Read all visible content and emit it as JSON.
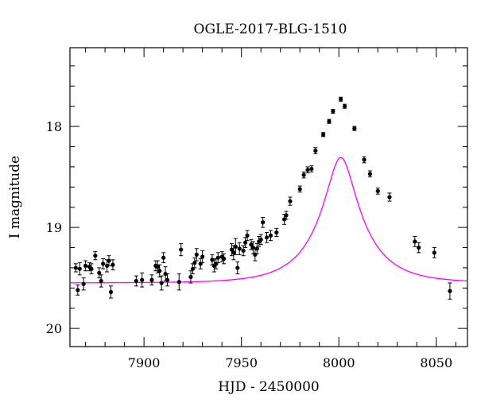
{
  "chart_data": {
    "type": "scatter",
    "title": "OGLE-2017-BLG-1510",
    "xlabel": "HJD - 2450000",
    "ylabel": "I magnitude",
    "xlim": [
      7862,
      8066
    ],
    "ylim": [
      20.18,
      17.22
    ],
    "y_inverted": true,
    "x_ticks": [
      7900,
      7950,
      8000,
      8050
    ],
    "x_tick_labels": [
      "7900",
      "7950",
      "8000",
      "8050"
    ],
    "y_ticks": [
      18,
      19,
      20
    ],
    "y_tick_labels": [
      "18",
      "19",
      "20"
    ],
    "grid": false,
    "model_color": "#ff00ff",
    "model": {
      "t0": 8001,
      "u0": 0.28,
      "tE": 24,
      "base": 19.55,
      "fs": 0.8
    },
    "series": [
      {
        "values": [
          [
            7865,
            19.4,
            0.04
          ],
          [
            7866,
            19.62,
            0.05
          ],
          [
            7867,
            19.41,
            0.06
          ],
          [
            7869,
            19.56,
            0.06
          ],
          [
            7870,
            19.38,
            0.05
          ],
          [
            7872,
            19.39,
            0.04
          ],
          [
            7873,
            19.41,
            0.05
          ],
          [
            7875,
            19.28,
            0.04
          ],
          [
            7877,
            19.45,
            0.05
          ],
          [
            7878,
            19.53,
            0.06
          ],
          [
            7879,
            19.36,
            0.05
          ],
          [
            7881,
            19.38,
            0.06
          ],
          [
            7882,
            19.33,
            0.05
          ],
          [
            7883,
            19.64,
            0.06
          ],
          [
            7884,
            19.37,
            0.05
          ],
          [
            7896,
            19.53,
            0.05
          ],
          [
            7899,
            19.52,
            0.07
          ],
          [
            7904,
            19.52,
            0.05
          ],
          [
            7906,
            19.38,
            0.05
          ],
          [
            7907,
            19.39,
            0.06
          ],
          [
            7908,
            19.43,
            0.06
          ],
          [
            7909,
            19.55,
            0.07
          ],
          [
            7910,
            19.3,
            0.05
          ],
          [
            7911,
            19.46,
            0.07
          ],
          [
            7912,
            19.52,
            0.06
          ],
          [
            7918,
            19.54,
            0.08
          ],
          [
            7919,
            19.22,
            0.06
          ],
          [
            7924,
            19.49,
            0.06
          ],
          [
            7925,
            19.41,
            0.05
          ],
          [
            7926,
            19.35,
            0.05
          ],
          [
            7927,
            19.27,
            0.06
          ],
          [
            7929,
            19.36,
            0.05
          ],
          [
            7930,
            19.29,
            0.06
          ],
          [
            7935,
            19.32,
            0.05
          ],
          [
            7936,
            19.38,
            0.06
          ],
          [
            7937,
            19.36,
            0.05
          ],
          [
            7938,
            19.3,
            0.05
          ],
          [
            7940,
            19.29,
            0.05
          ],
          [
            7941,
            19.31,
            0.05
          ],
          [
            7945,
            19.22,
            0.06
          ],
          [
            7946,
            19.25,
            0.07
          ],
          [
            7947,
            19.19,
            0.08
          ],
          [
            7948,
            19.4,
            0.06
          ],
          [
            7949,
            19.21,
            0.06
          ],
          [
            7951,
            19.23,
            0.05
          ],
          [
            7952,
            19.15,
            0.05
          ],
          [
            7953,
            19.08,
            0.05
          ],
          [
            7955,
            19.17,
            0.05
          ],
          [
            7956,
            19.2,
            0.06
          ],
          [
            7957,
            19.27,
            0.06
          ],
          [
            7958,
            19.21,
            0.05
          ],
          [
            7959,
            19.14,
            0.05
          ],
          [
            7960,
            19.12,
            0.05
          ],
          [
            7961,
            18.95,
            0.05
          ],
          [
            7963,
            19.1,
            0.05
          ],
          [
            7965,
            19.08,
            0.05
          ],
          [
            7968,
            19.05,
            0.04
          ],
          [
            7972,
            18.92,
            0.05
          ],
          [
            7973,
            18.88,
            0.04
          ],
          [
            7975,
            18.74,
            0.04
          ],
          [
            7980,
            18.62,
            0.03
          ],
          [
            7982,
            18.48,
            0.03
          ],
          [
            7984,
            18.43,
            0.03
          ],
          [
            7986,
            18.42,
            0.03
          ],
          [
            7988,
            18.24,
            0.03
          ],
          [
            7992,
            18.08,
            0.02
          ],
          [
            7995,
            17.95,
            0.02
          ],
          [
            7997,
            17.85,
            0.02
          ],
          [
            8001,
            17.73,
            0.02
          ],
          [
            8003,
            17.8,
            0.02
          ],
          [
            8008,
            18.02,
            0.02
          ],
          [
            8013,
            18.33,
            0.03
          ],
          [
            8016,
            18.47,
            0.03
          ],
          [
            8020,
            18.64,
            0.03
          ],
          [
            8026,
            18.7,
            0.04
          ],
          [
            8039,
            19.14,
            0.05
          ],
          [
            8041,
            19.2,
            0.05
          ],
          [
            8049,
            19.25,
            0.05
          ],
          [
            8057,
            19.63,
            0.08
          ]
        ]
      }
    ]
  }
}
